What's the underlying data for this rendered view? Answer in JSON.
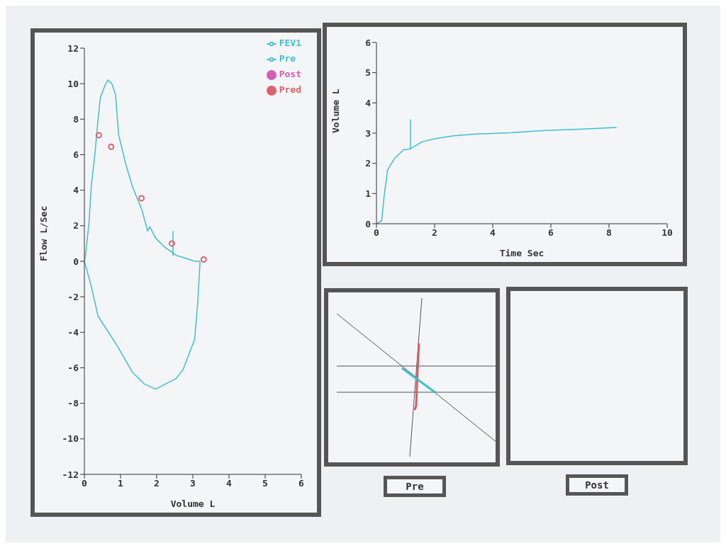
{
  "chart_data": [
    {
      "type": "line",
      "xlabel": "Volume L",
      "ylabel": "Flow L/Sec",
      "xlim": [
        0,
        6
      ],
      "xticks": [
        0,
        1,
        2,
        3,
        4,
        5,
        6
      ],
      "ylim": [
        -12,
        12
      ],
      "yticks": [
        -12,
        -10,
        -8,
        -6,
        -4,
        -2,
        0,
        2,
        4,
        6,
        8,
        10,
        12
      ],
      "legend": "top right",
      "series": [
        {
          "name": "FEV1",
          "type": "line",
          "color": "#3fbfcf",
          "x": [
            2.45,
            2.45
          ],
          "values": [
            0.3,
            1.7
          ]
        },
        {
          "name": "Pre",
          "type": "line",
          "color": "#3fbfcf",
          "x": [
            0,
            0.03,
            0.13,
            0.19,
            0.29,
            0.37,
            0.44,
            0.57,
            0.65,
            0.76,
            0.86,
            0.95,
            1.14,
            1.33,
            1.59,
            1.75,
            1.81,
            1.97,
            2.22,
            2.54,
            2.86,
            3.05,
            3.2
          ],
          "values": [
            0,
            0.3,
            2.2,
            4.2,
            6.0,
            7.8,
            9.2,
            9.9,
            10.2,
            10.0,
            9.4,
            7.1,
            5.5,
            4.2,
            2.9,
            1.7,
            1.95,
            1.3,
            0.8,
            0.33,
            0.13,
            0,
            0
          ]
        },
        {
          "type": "line",
          "color": "#3fbfcf",
          "x": [
            3.2,
            3.14,
            3.05,
            2.73,
            2.54,
            1.97,
            1.65,
            1.33,
            0.89,
            0.38,
            0.19,
            0
          ],
          "values": [
            0,
            -2.2,
            -4.4,
            -6.1,
            -6.6,
            -7.2,
            -6.9,
            -6.25,
            -4.7,
            -3.1,
            -1.4,
            0
          ]
        },
        {
          "name": "Post",
          "type": "scatter",
          "color": "#d65cb8",
          "marker": "circle"
        },
        {
          "name": "Pred",
          "type": "scatter",
          "marker": "circle",
          "color": "#e0606a",
          "x": [
            0.4,
            0.74,
            1.58,
            2.42,
            3.3
          ],
          "values": [
            7.1,
            6.45,
            3.55,
            1.0,
            0.1
          ]
        }
      ]
    },
    {
      "type": "line",
      "xlabel": "Time Sec",
      "ylabel": "Volume L",
      "xlim": [
        0,
        10
      ],
      "xticks": [
        0,
        2,
        4,
        6,
        8,
        10
      ],
      "ylim": [
        0,
        6
      ],
      "yticks": [
        0,
        1,
        2,
        3,
        4,
        5,
        6
      ],
      "series": [
        {
          "type": "line",
          "color": "#3fbfcf",
          "x": [
            0,
            0.18,
            0.26,
            0.38,
            0.61,
            0.93,
            1.17,
            1.56,
            2.03,
            2.66,
            3.45,
            4.63,
            5.82,
            7.0,
            8.26
          ],
          "values": [
            0,
            0.1,
            0.88,
            1.77,
            2.15,
            2.45,
            2.48,
            2.71,
            2.82,
            2.91,
            2.97,
            3.01,
            3.09,
            3.13,
            3.19
          ]
        },
        {
          "type": "line",
          "color": "#3fbfcf",
          "x": [
            1.17,
            1.17
          ],
          "values": [
            2.48,
            3.45
          ]
        }
      ]
    },
    {
      "type": "other",
      "annotations": [
        "Pre",
        "Post"
      ]
    }
  ]
}
